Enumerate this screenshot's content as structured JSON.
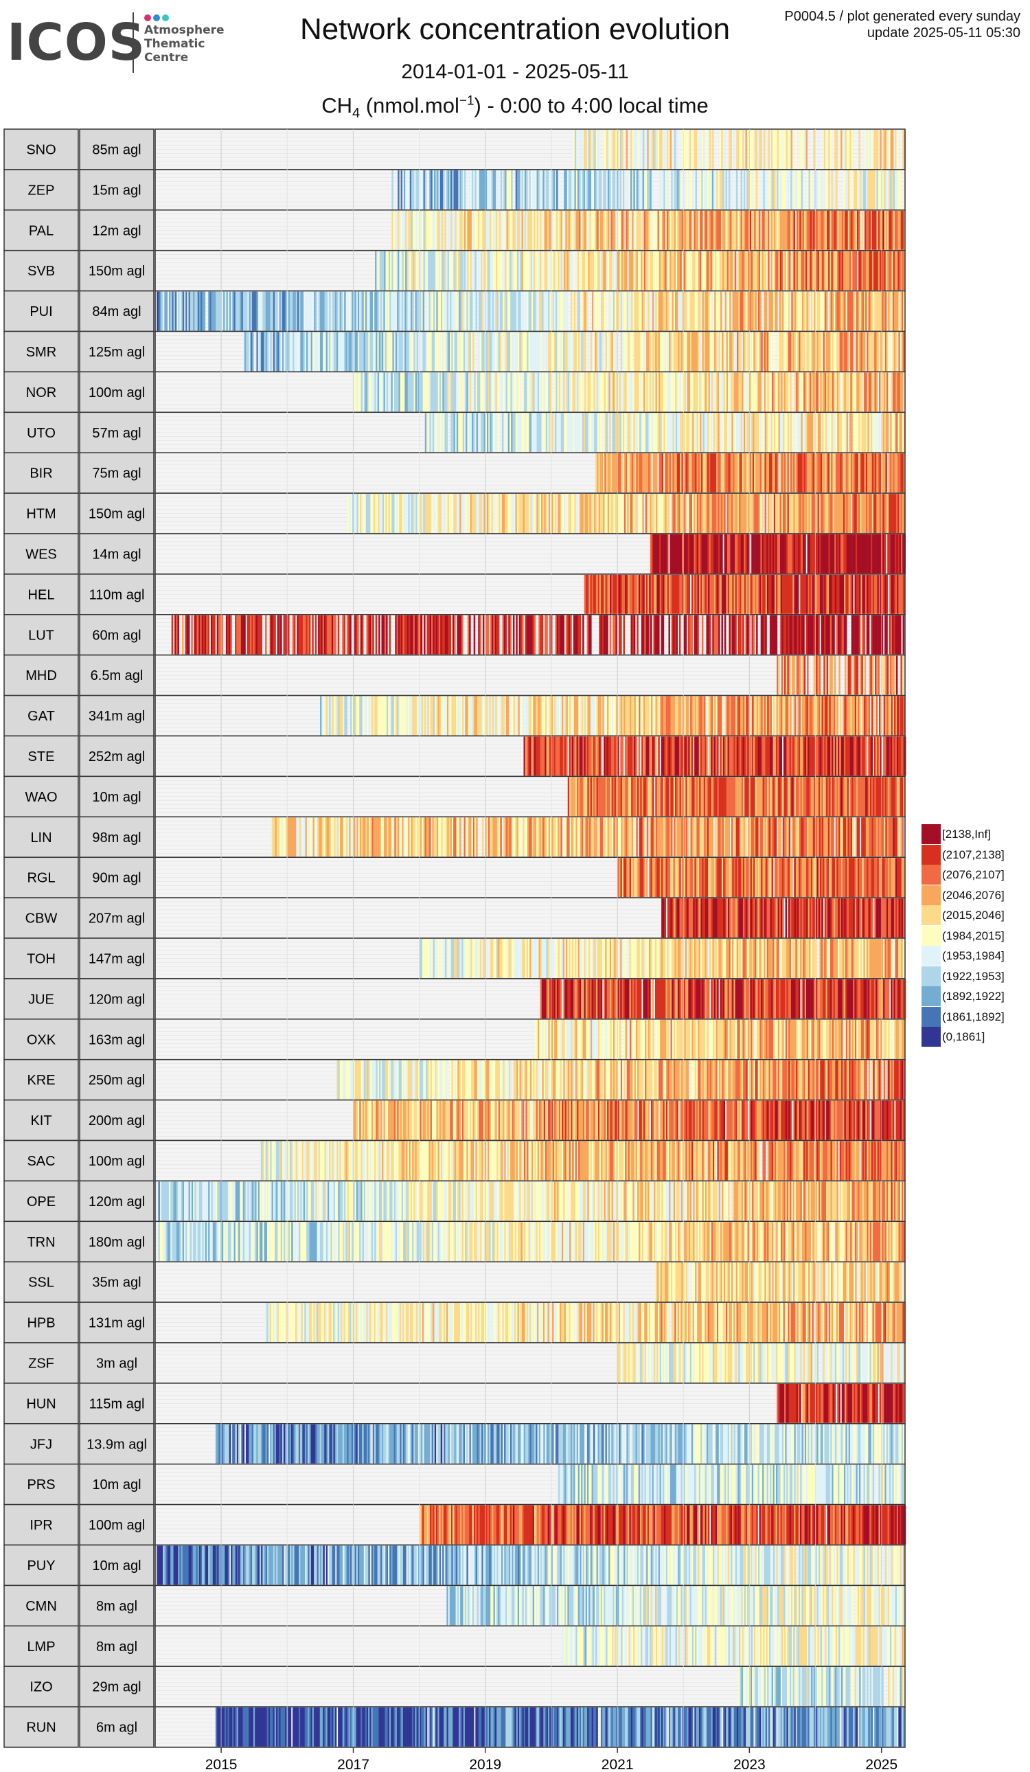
{
  "logo": {
    "word": "ICOS",
    "lines": [
      "Atmosphere",
      "Thematic",
      "Centre"
    ],
    "dot_colors": [
      "#d6336c",
      "#2f8cd8",
      "#3cc4c4"
    ]
  },
  "header": {
    "title": "Network concentration evolution",
    "date_range": "2014-01-01 - 2025-05-11",
    "subtitle_species": "CH",
    "subtitle_species_sub": "4",
    "subtitle_units": " (nmol.mol",
    "subtitle_units_sup": "−1",
    "subtitle_rest": ") - 0:00 to 4:00 local time",
    "product_line": "P0004.5 / plot generated every sunday",
    "update_line": "update  2025-05-11 05:30"
  },
  "chart_data": {
    "type": "heatmap",
    "x_type": "date",
    "x_range": [
      "2014-01-01",
      "2025-05-11"
    ],
    "x_ticks": [
      "2015",
      "2017",
      "2019",
      "2021",
      "2023",
      "2025"
    ],
    "grid": true,
    "legend_position": "right",
    "legend": [
      {
        "label": "[2138,Inf]",
        "color": "#a50f26"
      },
      {
        "label": "(2107,2138]",
        "color": "#d7301f"
      },
      {
        "label": "(2076,2107]",
        "color": "#f16a43"
      },
      {
        "label": "(2046,2076]",
        "color": "#f8a85c"
      },
      {
        "label": "(2015,2046]",
        "color": "#fdd98a"
      },
      {
        "label": "(1984,2015]",
        "color": "#fefdc0"
      },
      {
        "label": "(1953,1984]",
        "color": "#e0f3f8"
      },
      {
        "label": "(1922,1953]",
        "color": "#aed6e8"
      },
      {
        "label": "(1892,1922]",
        "color": "#74add1"
      },
      {
        "label": "(1861,1892]",
        "color": "#4575b4"
      },
      {
        "label": "(0,1861]",
        "color": "#313695"
      }
    ],
    "stations": [
      {
        "code": "SNO",
        "height": "85m agl",
        "start": "2020-05-01",
        "levels_2014": 7,
        "levels_2025": 4,
        "gaps": 0.35
      },
      {
        "code": "ZEP",
        "height": "15m agl",
        "start": "2017-08-01",
        "levels_2014": 9,
        "levels_2025": 5,
        "gaps": 0.25
      },
      {
        "code": "PAL",
        "height": "12m agl",
        "start": "2017-08-01",
        "levels_2014": 7,
        "levels_2025": 2,
        "gaps": 0.05
      },
      {
        "code": "SVB",
        "height": "150m agl",
        "start": "2017-05-01",
        "levels_2014": 8,
        "levels_2025": 2,
        "gaps": 0.05
      },
      {
        "code": "PUI",
        "height": "84m agl",
        "start": "2014-01-10",
        "levels_2014": 8,
        "levels_2025": 3,
        "gaps": 0.1
      },
      {
        "code": "SMR",
        "height": "125m agl",
        "start": "2015-05-01",
        "levels_2014": 8,
        "levels_2025": 3,
        "gaps": 0.1
      },
      {
        "code": "NOR",
        "height": "100m agl",
        "start": "2017-01-01",
        "levels_2014": 8,
        "levels_2025": 3,
        "gaps": 0.05
      },
      {
        "code": "UTO",
        "height": "57m agl",
        "start": "2018-02-01",
        "levels_2014": 8,
        "levels_2025": 4,
        "gaps": 0.05
      },
      {
        "code": "BIR",
        "height": "75m agl",
        "start": "2020-09-01",
        "levels_2014": 5,
        "levels_2025": 2,
        "gaps": 0.02
      },
      {
        "code": "HTM",
        "height": "150m agl",
        "start": "2016-12-01",
        "levels_2014": 7,
        "levels_2025": 2,
        "gaps": 0.05
      },
      {
        "code": "WES",
        "height": "14m agl",
        "start": "2021-07-01",
        "levels_2014": 2,
        "levels_2025": 0,
        "gaps": 0.02
      },
      {
        "code": "HEL",
        "height": "110m agl",
        "start": "2020-07-01",
        "levels_2014": 3,
        "levels_2025": 1,
        "gaps": 0.02
      },
      {
        "code": "LUT",
        "height": "60m agl",
        "start": "2014-04-01",
        "levels_2014": 1,
        "levels_2025": 0,
        "gaps": 0.3
      },
      {
        "code": "MHD",
        "height": "6.5m agl",
        "start": "2023-06-01",
        "levels_2014": 4,
        "levels_2025": 2,
        "gaps": 0.4
      },
      {
        "code": "GAT",
        "height": "341m agl",
        "start": "2016-07-01",
        "levels_2014": 7,
        "levels_2025": 2,
        "gaps": 0.1
      },
      {
        "code": "STE",
        "height": "252m agl",
        "start": "2019-08-01",
        "levels_2014": 2,
        "levels_2025": 1,
        "gaps": 0.03
      },
      {
        "code": "WAO",
        "height": "10m agl",
        "start": "2020-04-01",
        "levels_2014": 3,
        "levels_2025": 2,
        "gaps": 0.03
      },
      {
        "code": "LIN",
        "height": "98m agl",
        "start": "2015-10-01",
        "levels_2014": 5,
        "levels_2025": 2,
        "gaps": 0.1
      },
      {
        "code": "RGL",
        "height": "90m agl",
        "start": "2021-01-01",
        "levels_2014": 3,
        "levels_2025": 2,
        "gaps": 0.03
      },
      {
        "code": "CBW",
        "height": "207m agl",
        "start": "2021-09-01",
        "levels_2014": 2,
        "levels_2025": 1,
        "gaps": 0.02
      },
      {
        "code": "TOH",
        "height": "147m agl",
        "start": "2018-01-01",
        "levels_2014": 7,
        "levels_2025": 3,
        "gaps": 0.05
      },
      {
        "code": "JUE",
        "height": "120m agl",
        "start": "2019-11-01",
        "levels_2014": 2,
        "levels_2025": 1,
        "gaps": 0.02
      },
      {
        "code": "OXK",
        "height": "163m agl",
        "start": "2019-10-01",
        "levels_2014": 6,
        "levels_2025": 3,
        "gaps": 0.03
      },
      {
        "code": "KRE",
        "height": "250m agl",
        "start": "2016-10-01",
        "levels_2014": 7,
        "levels_2025": 2,
        "gaps": 0.05
      },
      {
        "code": "KIT",
        "height": "200m agl",
        "start": "2017-01-01",
        "levels_2014": 5,
        "levels_2025": 1,
        "gaps": 0.03
      },
      {
        "code": "SAC",
        "height": "100m agl",
        "start": "2015-08-01",
        "levels_2014": 6,
        "levels_2025": 2,
        "gaps": 0.03
      },
      {
        "code": "OPE",
        "height": "120m agl",
        "start": "2014-01-10",
        "levels_2014": 7,
        "levels_2025": 3,
        "gaps": 0.03
      },
      {
        "code": "TRN",
        "height": "180m agl",
        "start": "2014-01-10",
        "levels_2014": 7,
        "levels_2025": 3,
        "gaps": 0.03
      },
      {
        "code": "SSL",
        "height": "35m agl",
        "start": "2021-08-01",
        "levels_2014": 5,
        "levels_2025": 4,
        "gaps": 0.03
      },
      {
        "code": "HPB",
        "height": "131m agl",
        "start": "2015-09-01",
        "levels_2014": 6,
        "levels_2025": 3,
        "gaps": 0.05
      },
      {
        "code": "ZSF",
        "height": "3m agl",
        "start": "2021-01-01",
        "levels_2014": 6,
        "levels_2025": 5,
        "gaps": 0.05
      },
      {
        "code": "HUN",
        "height": "115m agl",
        "start": "2023-06-01",
        "levels_2014": 2,
        "levels_2025": 1,
        "gaps": 0.03
      },
      {
        "code": "JFJ",
        "height": "13.9m agl",
        "start": "2014-12-01",
        "levels_2014": 9,
        "levels_2025": 6,
        "gaps": 0.05
      },
      {
        "code": "PRS",
        "height": "10m agl",
        "start": "2020-02-01",
        "levels_2014": 7,
        "levels_2025": 6,
        "gaps": 0.05
      },
      {
        "code": "IPR",
        "height": "100m agl",
        "start": "2018-01-01",
        "levels_2014": 3,
        "levels_2025": 1,
        "gaps": 0.02
      },
      {
        "code": "PUY",
        "height": "10m agl",
        "start": "2014-01-10",
        "levels_2014": 9,
        "levels_2025": 5,
        "gaps": 0.05
      },
      {
        "code": "CMN",
        "height": "8m agl",
        "start": "2018-06-01",
        "levels_2014": 8,
        "levels_2025": 5,
        "gaps": 0.05
      },
      {
        "code": "LMP",
        "height": "8m agl",
        "start": "2020-03-01",
        "levels_2014": 7,
        "levels_2025": 5,
        "gaps": 0.05
      },
      {
        "code": "IZO",
        "height": "29m agl",
        "start": "2022-11-01",
        "levels_2014": 7,
        "levels_2025": 6,
        "gaps": 0.05
      },
      {
        "code": "RUN",
        "height": "6m agl",
        "start": "2014-12-01",
        "levels_2014": 10,
        "levels_2025": 8,
        "gaps": 0.03
      }
    ]
  }
}
